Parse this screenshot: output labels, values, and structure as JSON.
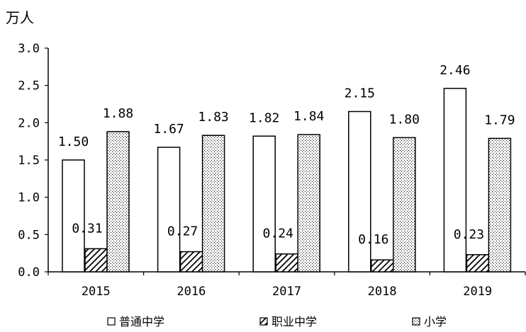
{
  "chart_data": {
    "type": "bar",
    "unit": "万人",
    "categories": [
      "2015",
      "2016",
      "2017",
      "2018",
      "2019"
    ],
    "series": [
      {
        "name": "普通中学",
        "values": [
          1.5,
          1.67,
          1.82,
          2.15,
          2.46
        ],
        "style": "outline"
      },
      {
        "name": "职业中学",
        "values": [
          0.31,
          0.27,
          0.24,
          0.16,
          0.23
        ],
        "style": "hatched"
      },
      {
        "name": "小学",
        "values": [
          1.88,
          1.83,
          1.84,
          1.8,
          1.79
        ],
        "style": "dotted"
      }
    ],
    "data_labels": [
      [
        "1.50",
        "1.67",
        "1.82",
        "2.15",
        "2.46"
      ],
      [
        "0.31",
        "0.27",
        "0.24",
        "0.16",
        "0.23"
      ],
      [
        "1.88",
        "1.83",
        "1.84",
        "1.80",
        "1.79"
      ]
    ],
    "yticks": [
      "0.0",
      "0.5",
      "1.0",
      "1.5",
      "2.0",
      "2.5",
      "3.0"
    ],
    "ylim": [
      0,
      3.0
    ],
    "legend_position": "bottom",
    "grid": false,
    "colors": {
      "outline": "#000000",
      "fill": "#ffffff"
    }
  }
}
